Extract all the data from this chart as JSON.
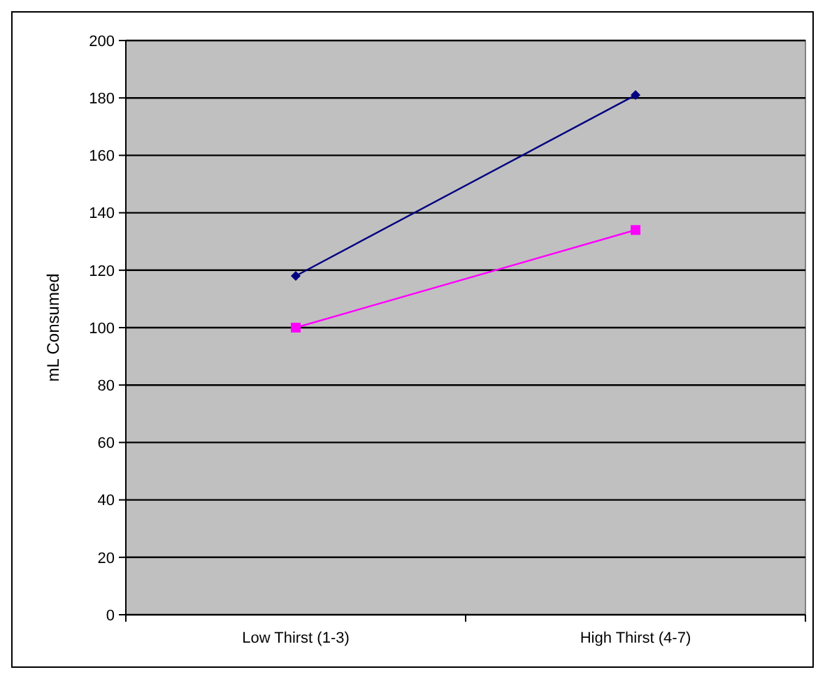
{
  "chart_data": {
    "type": "line",
    "ylabel": "mL Consumed",
    "categories": [
      "Low Thirst (1-3)",
      "High Thirst (4-7)"
    ],
    "series": [
      {
        "color": "#000080",
        "values": [
          118,
          181
        ],
        "marker": "diamond"
      },
      {
        "color": "#ff00ff",
        "values": [
          100,
          134
        ],
        "marker": "square"
      }
    ],
    "ylim": [
      0,
      200
    ],
    "yticks": [
      0,
      20,
      40,
      60,
      80,
      100,
      120,
      140,
      160,
      180,
      200
    ],
    "grid": "y"
  }
}
